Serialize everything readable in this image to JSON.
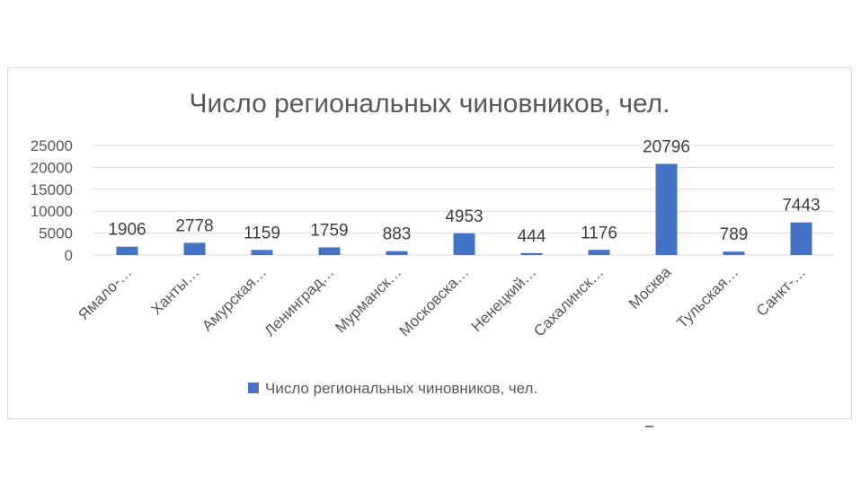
{
  "chart_data": {
    "type": "bar",
    "title": "Число региональных чиновников, чел.",
    "categories": [
      "Ямало-…",
      "Ханты…",
      "Амурская…",
      "Ленинград…",
      "Мурманск…",
      "Московска…",
      "Ненецкий…",
      "Сахалинск…",
      "Москва",
      "Тульская…",
      "Санкт-…"
    ],
    "series": [
      {
        "name": "Число региональных чиновников, чел.",
        "values": [
          1906,
          2778,
          1159,
          1759,
          883,
          4953,
          444,
          1176,
          20796,
          789,
          7443
        ]
      }
    ],
    "data_labels": [
      "1906",
      "2778",
      "1159",
      "1759",
      "883",
      "4953",
      "444",
      "1176",
      "20796",
      "789",
      "7443"
    ],
    "y_ticks": [
      "0",
      "5000",
      "10000",
      "15000",
      "20000",
      "25000"
    ],
    "ylim": [
      0,
      25000
    ],
    "grid": true,
    "legend_position": "bottom",
    "bar_color": "#4472c4",
    "text_color": "#595959",
    "grid_color": "#d9d9d9"
  }
}
